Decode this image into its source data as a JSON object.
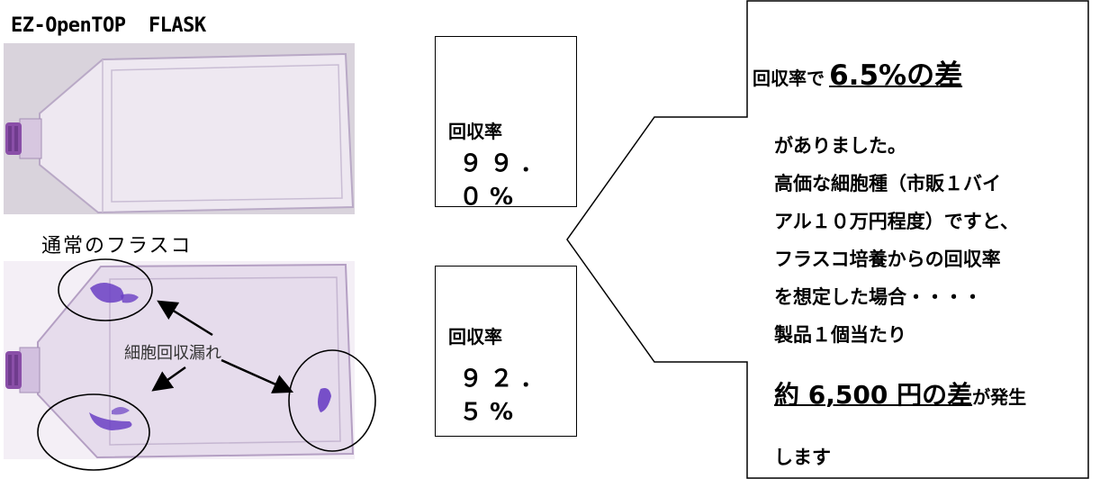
{
  "top_flask": {
    "caption": "EZ-OpenTOP  FLASK"
  },
  "bottom_flask": {
    "caption": "通常のフラスコ",
    "annotation": "細胞回収漏れ"
  },
  "rates": [
    {
      "label": "回収率",
      "value": "９９．０%"
    },
    {
      "label": "回収率",
      "value": "９２．５%"
    }
  ],
  "callout": {
    "headline_prefix": "回収率で",
    "headline_emphasis": "6.5%の差",
    "lines": [
      "がありました。",
      "高価な細胞種（市販１バイ",
      "アル１０万円程度）ですと、",
      "フラスコ培養からの回収率",
      "を想定した場合・・・・",
      "製品１個当たり"
    ],
    "bottom_emphasis": "約 6,500 円の差",
    "bottom_suffix": "が発生",
    "last_line": "します"
  },
  "colors": {
    "flask_plastic": "#e9e1ee",
    "cap_purple": "#8a4fa8",
    "cell_stain": "#6a3fc4"
  }
}
